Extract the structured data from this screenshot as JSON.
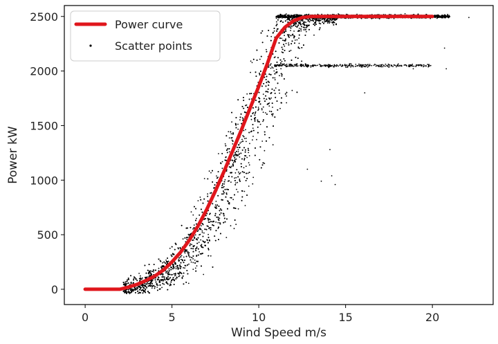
{
  "chart_data": {
    "type": "scatter",
    "xlabel": "Wind Speed m/s",
    "ylabel": "Power kW",
    "xlim": [
      -1.2,
      23.5
    ],
    "ylim": [
      -140,
      2600
    ],
    "xticks": [
      "0",
      "5",
      "10",
      "15",
      "20"
    ],
    "yticks": [
      "0",
      "500",
      "1000",
      "1500",
      "2000",
      "2500"
    ],
    "grid": false,
    "legend_position": "top-left",
    "series": [
      {
        "name": "Power curve",
        "kind": "line",
        "color": "#e0161c",
        "x": [
          0,
          1,
          2,
          2.5,
          3,
          3.5,
          4,
          4.5,
          5,
          5.5,
          6,
          6.5,
          7,
          7.5,
          8,
          8.5,
          9,
          9.5,
          10,
          10.5,
          11,
          11.5,
          12,
          12.5,
          13,
          14,
          15,
          16,
          17,
          18,
          19,
          20
        ],
        "y": [
          0,
          0,
          0,
          20,
          45,
          80,
          120,
          175,
          250,
          340,
          450,
          580,
          730,
          900,
          1080,
          1270,
          1460,
          1660,
          1860,
          2070,
          2300,
          2400,
          2460,
          2490,
          2500,
          2500,
          2500,
          2500,
          2500,
          2500,
          2500,
          2500
        ]
      },
      {
        "name": "Scatter points",
        "kind": "scatter",
        "color": "#000000",
        "note": "dense band of measured points around the power curve, widening between 5 and 12 m/s, saturating at 2500 kW; a secondary cluster near 2050 kW from 11 to 20 m/s"
      }
    ]
  }
}
